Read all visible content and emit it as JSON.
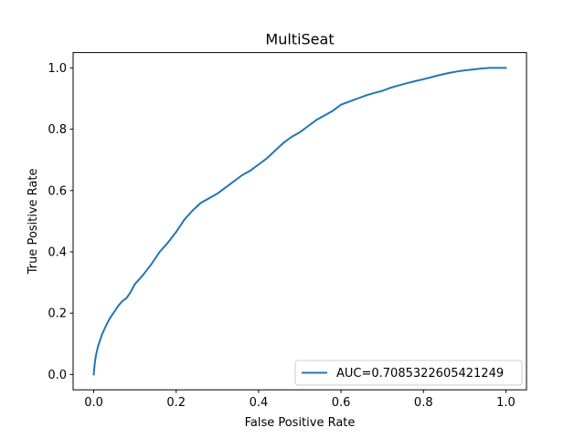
{
  "chart_data": {
    "type": "line",
    "title": "MultiSeat",
    "xlabel": "False Positive Rate",
    "ylabel": "True Positive Rate",
    "xlim": [
      -0.05,
      1.05
    ],
    "ylim": [
      -0.05,
      1.05
    ],
    "xticks": [
      0.0,
      0.2,
      0.4,
      0.6,
      0.8,
      1.0
    ],
    "xtick_labels": [
      "0.0",
      "0.2",
      "0.4",
      "0.6",
      "0.8",
      "1.0"
    ],
    "yticks": [
      0.0,
      0.2,
      0.4,
      0.6,
      0.8,
      1.0
    ],
    "ytick_labels": [
      "0.0",
      "0.2",
      "0.4",
      "0.6",
      "0.8",
      "1.0"
    ],
    "grid": false,
    "legend_position": "lower right",
    "series": [
      {
        "name": "AUC=0.7085322605421249",
        "color": "#1f77b4",
        "x": [
          0.0,
          0.002,
          0.005,
          0.01,
          0.015,
          0.02,
          0.03,
          0.04,
          0.05,
          0.06,
          0.07,
          0.08,
          0.09,
          0.1,
          0.12,
          0.14,
          0.16,
          0.18,
          0.2,
          0.22,
          0.24,
          0.26,
          0.28,
          0.3,
          0.32,
          0.34,
          0.36,
          0.38,
          0.4,
          0.42,
          0.44,
          0.46,
          0.48,
          0.5,
          0.52,
          0.54,
          0.56,
          0.58,
          0.6,
          0.62,
          0.64,
          0.66,
          0.68,
          0.7,
          0.72,
          0.74,
          0.76,
          0.78,
          0.8,
          0.82,
          0.84,
          0.86,
          0.88,
          0.9,
          0.92,
          0.94,
          0.96,
          0.98,
          1.0
        ],
        "y": [
          0.0,
          0.03,
          0.06,
          0.09,
          0.11,
          0.13,
          0.16,
          0.185,
          0.205,
          0.225,
          0.24,
          0.25,
          0.27,
          0.295,
          0.325,
          0.36,
          0.4,
          0.43,
          0.465,
          0.505,
          0.535,
          0.56,
          0.575,
          0.59,
          0.61,
          0.63,
          0.65,
          0.665,
          0.685,
          0.705,
          0.73,
          0.755,
          0.775,
          0.79,
          0.81,
          0.83,
          0.845,
          0.86,
          0.88,
          0.89,
          0.9,
          0.91,
          0.918,
          0.925,
          0.935,
          0.943,
          0.95,
          0.957,
          0.963,
          0.97,
          0.977,
          0.983,
          0.988,
          0.992,
          0.995,
          0.998,
          1.0,
          1.0,
          1.0
        ]
      }
    ]
  }
}
